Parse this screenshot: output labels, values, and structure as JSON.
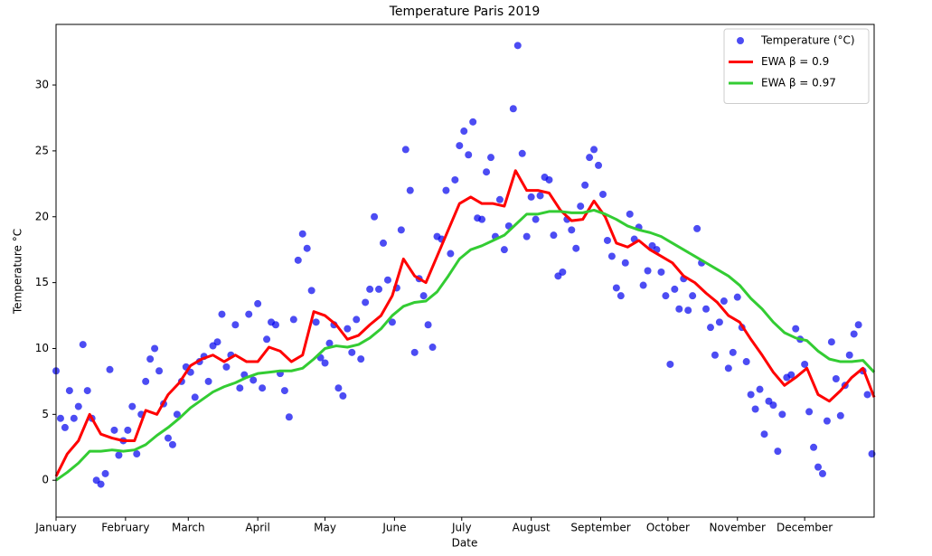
{
  "chart_data": {
    "type": "scatter_line",
    "title": "Temperature Paris 2019",
    "xlabel": "Date",
    "ylabel": "Temperature °C",
    "xlim": [
      0,
      365
    ],
    "xticks": [
      {
        "value": 0,
        "label": "January"
      },
      {
        "value": 31,
        "label": "February"
      },
      {
        "value": 59,
        "label": "March"
      },
      {
        "value": 90,
        "label": "April"
      },
      {
        "value": 120,
        "label": "May"
      },
      {
        "value": 151,
        "label": "June"
      },
      {
        "value": 181,
        "label": "July"
      },
      {
        "value": 212,
        "label": "August"
      },
      {
        "value": 243,
        "label": "September"
      },
      {
        "value": 273,
        "label": "October"
      },
      {
        "value": 304,
        "label": "November"
      },
      {
        "value": 334,
        "label": "December"
      }
    ],
    "ylim": [
      -2.8,
      34.6
    ],
    "yticks": [
      0,
      5,
      10,
      15,
      20,
      25,
      30
    ],
    "grid": false,
    "legend": "upper right",
    "series": [
      {
        "name": "Temperature (°C)",
        "kind": "scatter",
        "color": "#0000ee",
        "x": [
          0,
          2,
          4,
          6,
          8,
          10,
          12,
          14,
          16,
          18,
          20,
          22,
          24,
          26,
          28,
          30,
          32,
          34,
          36,
          38,
          40,
          42,
          44,
          46,
          48,
          50,
          52,
          54,
          56,
          58,
          60,
          62,
          64,
          66,
          68,
          70,
          72,
          74,
          76,
          78,
          80,
          82,
          84,
          86,
          88,
          90,
          92,
          94,
          96,
          98,
          100,
          102,
          104,
          106,
          108,
          110,
          112,
          114,
          116,
          118,
          120,
          122,
          124,
          126,
          128,
          130,
          132,
          134,
          136,
          138,
          140,
          142,
          144,
          146,
          148,
          150,
          152,
          154,
          156,
          158,
          160,
          162,
          164,
          166,
          168,
          170,
          172,
          174,
          176,
          178,
          180,
          182,
          184,
          186,
          188,
          190,
          192,
          194,
          196,
          198,
          200,
          202,
          204,
          206,
          208,
          210,
          212,
          214,
          216,
          218,
          220,
          222,
          224,
          226,
          228,
          230,
          232,
          234,
          236,
          238,
          240,
          242,
          244,
          246,
          248,
          250,
          252,
          254,
          256,
          258,
          260,
          262,
          264,
          266,
          268,
          270,
          272,
          274,
          276,
          278,
          280,
          282,
          284,
          286,
          288,
          290,
          292,
          294,
          296,
          298,
          300,
          302,
          304,
          306,
          308,
          310,
          312,
          314,
          316,
          318,
          320,
          322,
          324,
          326,
          328,
          330,
          332,
          334,
          336,
          338,
          340,
          342,
          344,
          346,
          348,
          350,
          352,
          354,
          356,
          358,
          360,
          362,
          364
        ],
        "values": [
          8.3,
          4.7,
          4.0,
          6.8,
          4.7,
          5.6,
          10.3,
          6.8,
          4.7,
          0,
          -0.3,
          0.5,
          8.4,
          3.8,
          1.9,
          3.0,
          3.8,
          5.6,
          2.0,
          5.0,
          7.5,
          9.2,
          10.0,
          8.3,
          5.8,
          3.2,
          2.7,
          5.0,
          7.5,
          8.6,
          8.2,
          6.3,
          9.0,
          9.4,
          7.5,
          10.2,
          10.5,
          12.6,
          8.6,
          9.5,
          11.8,
          7.0,
          8.0,
          12.6,
          7.6,
          13.4,
          7.0,
          10.7,
          12.0,
          11.8,
          8.1,
          6.8,
          4.8,
          12.2,
          16.7,
          18.7,
          17.6,
          14.4,
          12.0,
          9.3,
          8.9,
          10.4,
          11.8,
          7.0,
          6.4,
          11.5,
          9.7,
          12.2,
          9.2,
          13.5,
          14.5,
          20.0,
          14.5,
          18.0,
          15.2,
          12.0,
          14.6,
          19.0,
          25.1,
          22.0,
          9.7,
          15.3,
          14.0,
          11.8,
          10.1,
          18.5,
          18.3,
          22.0,
          17.2,
          22.8,
          25.4,
          26.5,
          24.7,
          27.2,
          19.9,
          19.8,
          23.4,
          24.5,
          18.5,
          21.3,
          17.5,
          19.3,
          28.2,
          33.0,
          24.8,
          18.5,
          21.5,
          19.8,
          21.6,
          23.0,
          22.8,
          18.6,
          15.5,
          15.8,
          19.8,
          19.0,
          17.6,
          20.8,
          22.4,
          24.5,
          25.1,
          23.9,
          21.7,
          18.2,
          17.0,
          14.6,
          14.0,
          16.5,
          20.2,
          18.3,
          19.2,
          14.8,
          15.9,
          17.8,
          17.5,
          15.8,
          14.0,
          8.8,
          14.5,
          13.0,
          15.3,
          12.9,
          14.0,
          19.1,
          16.5,
          13.0,
          11.6,
          9.5,
          12.0,
          13.6,
          8.5,
          9.7,
          13.9,
          11.6,
          9.0,
          6.5,
          5.4,
          6.9,
          3.5,
          6.0,
          5.7,
          2.2,
          5.0,
          7.8,
          8.0,
          11.5,
          10.7,
          8.8,
          5.2,
          2.5,
          1.0,
          0.5,
          4.5,
          10.5,
          7.7,
          4.9,
          7.2,
          9.5,
          11.1,
          11.8,
          8.3,
          6.5,
          2.0
        ]
      },
      {
        "name": "EWA β = 0.9",
        "kind": "line",
        "color": "#ff0000",
        "x": [
          0,
          5,
          10,
          15,
          20,
          25,
          30,
          35,
          40,
          45,
          50,
          55,
          60,
          65,
          70,
          75,
          80,
          85,
          90,
          95,
          100,
          105,
          110,
          115,
          120,
          125,
          130,
          135,
          140,
          145,
          150,
          155,
          160,
          165,
          170,
          175,
          180,
          185,
          190,
          195,
          200,
          205,
          210,
          215,
          220,
          225,
          230,
          235,
          240,
          245,
          250,
          255,
          260,
          265,
          270,
          275,
          280,
          285,
          290,
          295,
          300,
          305,
          310,
          315,
          320,
          325,
          330,
          335,
          340,
          345,
          350,
          355,
          360,
          365
        ],
        "values": [
          0.3,
          2.0,
          3.0,
          5.0,
          3.5,
          3.2,
          3.0,
          3.0,
          5.3,
          5.0,
          6.5,
          7.4,
          8.7,
          9.2,
          9.5,
          9.0,
          9.5,
          9.0,
          9.0,
          10.1,
          9.8,
          9.0,
          9.5,
          12.8,
          12.5,
          11.8,
          10.7,
          11.0,
          11.8,
          12.5,
          14.0,
          16.8,
          15.5,
          15.0,
          17.0,
          19.0,
          21.0,
          21.5,
          21.0,
          21.0,
          20.8,
          23.5,
          22.0,
          22.0,
          21.8,
          20.5,
          19.7,
          19.8,
          21.2,
          20.0,
          18.0,
          17.7,
          18.2,
          17.5,
          17.0,
          16.5,
          15.5,
          15.0,
          14.2,
          13.5,
          12.5,
          12.0,
          10.7,
          9.5,
          8.2,
          7.2,
          7.8,
          8.5,
          6.5,
          6.0,
          6.8,
          7.8,
          8.5,
          6.3
        ]
      },
      {
        "name": "EWA β = 0.97",
        "kind": "line",
        "color": "#33cc33",
        "x": [
          0,
          5,
          10,
          15,
          20,
          25,
          30,
          35,
          40,
          45,
          50,
          55,
          60,
          65,
          70,
          75,
          80,
          85,
          90,
          95,
          100,
          105,
          110,
          115,
          120,
          125,
          130,
          135,
          140,
          145,
          150,
          155,
          160,
          165,
          170,
          175,
          180,
          185,
          190,
          195,
          200,
          205,
          210,
          215,
          220,
          225,
          230,
          235,
          240,
          245,
          250,
          255,
          260,
          265,
          270,
          275,
          280,
          285,
          290,
          295,
          300,
          305,
          310,
          315,
          320,
          325,
          330,
          335,
          340,
          345,
          350,
          355,
          360,
          365
        ],
        "values": [
          0,
          0.6,
          1.3,
          2.2,
          2.2,
          2.3,
          2.2,
          2.3,
          2.7,
          3.4,
          4.0,
          4.7,
          5.5,
          6.1,
          6.7,
          7.1,
          7.4,
          7.8,
          8.1,
          8.2,
          8.3,
          8.3,
          8.5,
          9.2,
          10.0,
          10.2,
          10.1,
          10.3,
          10.8,
          11.5,
          12.5,
          13.2,
          13.5,
          13.6,
          14.3,
          15.5,
          16.8,
          17.5,
          17.8,
          18.2,
          18.6,
          19.4,
          20.2,
          20.2,
          20.4,
          20.4,
          20.3,
          20.3,
          20.5,
          20.2,
          19.8,
          19.3,
          19.0,
          18.8,
          18.5,
          18.0,
          17.5,
          17.0,
          16.5,
          16.0,
          15.5,
          14.8,
          13.8,
          13.0,
          12.0,
          11.2,
          10.8,
          10.6,
          9.8,
          9.2,
          9.0,
          9.0,
          9.1,
          8.2
        ]
      }
    ]
  }
}
